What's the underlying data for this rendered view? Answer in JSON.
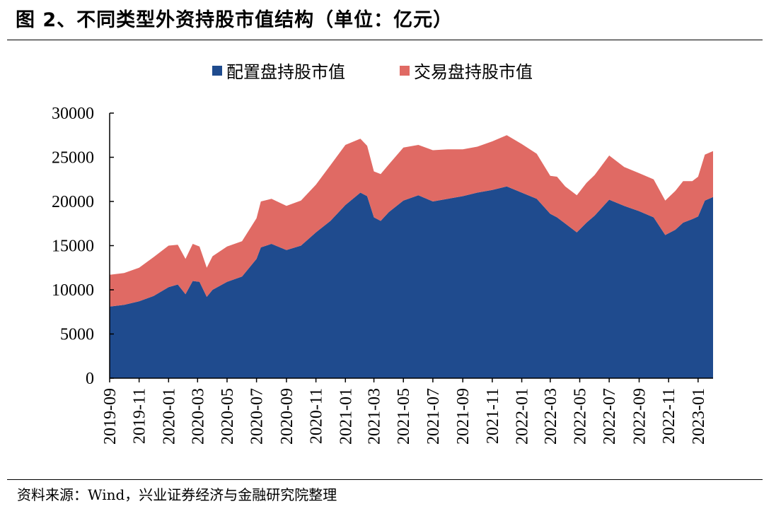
{
  "figure": {
    "title": "图 2、不同类型外资持股市值结构（单位：亿元）",
    "source": "资料来源：Wind，兴业证券经济与金融研究院整理"
  },
  "colors": {
    "allocation": "#1f4b8e",
    "trading": "#e06a64"
  },
  "chart_data": {
    "type": "area",
    "stacked": true,
    "title": "",
    "xlabel": "",
    "ylabel": "",
    "ylim": [
      0,
      30000
    ],
    "yticks": [
      "0",
      "5000",
      "10000",
      "15000",
      "20000",
      "25000",
      "30000"
    ],
    "xticks": [
      "2019-09",
      "2019-11",
      "2020-01",
      "2020-03",
      "2020-05",
      "2020-07",
      "2020-09",
      "2020-11",
      "2021-01",
      "2021-03",
      "2021-05",
      "2021-07",
      "2021-09",
      "2021-11",
      "2022-01",
      "2022-03",
      "2022-05",
      "2022-07",
      "2022-09",
      "2022-11",
      "2023-01"
    ],
    "legend_position": "top-center",
    "grid": false,
    "x": [
      "2019-09-01",
      "2019-10-01",
      "2019-11-01",
      "2019-12-01",
      "2020-01-01",
      "2020-01-20",
      "2020-02-05",
      "2020-02-20",
      "2020-03-05",
      "2020-03-20",
      "2020-04-01",
      "2020-05-01",
      "2020-06-01",
      "2020-07-01",
      "2020-07-10",
      "2020-08-01",
      "2020-09-01",
      "2020-10-01",
      "2020-11-01",
      "2020-12-01",
      "2021-01-01",
      "2021-02-01",
      "2021-02-15",
      "2021-03-01",
      "2021-03-15",
      "2021-04-01",
      "2021-05-01",
      "2021-06-01",
      "2021-07-01",
      "2021-08-01",
      "2021-09-01",
      "2021-10-01",
      "2021-11-01",
      "2021-12-01",
      "2022-01-01",
      "2022-02-01",
      "2022-03-01",
      "2022-03-15",
      "2022-04-01",
      "2022-04-25",
      "2022-05-15",
      "2022-06-01",
      "2022-07-01",
      "2022-08-01",
      "2022-09-01",
      "2022-10-01",
      "2022-10-25",
      "2022-11-15",
      "2022-12-01",
      "2022-12-20",
      "2023-01-01",
      "2023-01-15",
      "2023-02-01"
    ],
    "series": [
      {
        "name": "配置盘持股市值",
        "values": [
          8100,
          8300,
          8700,
          9300,
          10300,
          10600,
          9500,
          11000,
          10900,
          9200,
          10000,
          10900,
          11500,
          13500,
          14800,
          15200,
          14500,
          15000,
          16500,
          17800,
          19600,
          21000,
          20600,
          18200,
          17800,
          18800,
          20100,
          20700,
          20000,
          20300,
          20600,
          21000,
          21300,
          21700,
          21000,
          20300,
          18600,
          18200,
          17500,
          16500,
          17600,
          18400,
          20200,
          19500,
          18900,
          18200,
          16200,
          16800,
          17600,
          18000,
          18300,
          20100,
          20500
        ]
      },
      {
        "name": "交易盘持股市值",
        "values": [
          3600,
          3600,
          3800,
          4400,
          4700,
          4500,
          4000,
          4200,
          4000,
          3300,
          3800,
          4000,
          4000,
          4600,
          5200,
          5100,
          5000,
          5100,
          5400,
          6300,
          6800,
          6100,
          5700,
          5200,
          5300,
          5400,
          6000,
          5700,
          5800,
          5600,
          5300,
          5200,
          5500,
          5800,
          5500,
          5100,
          4300,
          4600,
          4200,
          4200,
          4500,
          4600,
          5000,
          4400,
          4300,
          4300,
          3900,
          4400,
          4700,
          4300,
          4500,
          5200,
          5200
        ]
      }
    ]
  }
}
